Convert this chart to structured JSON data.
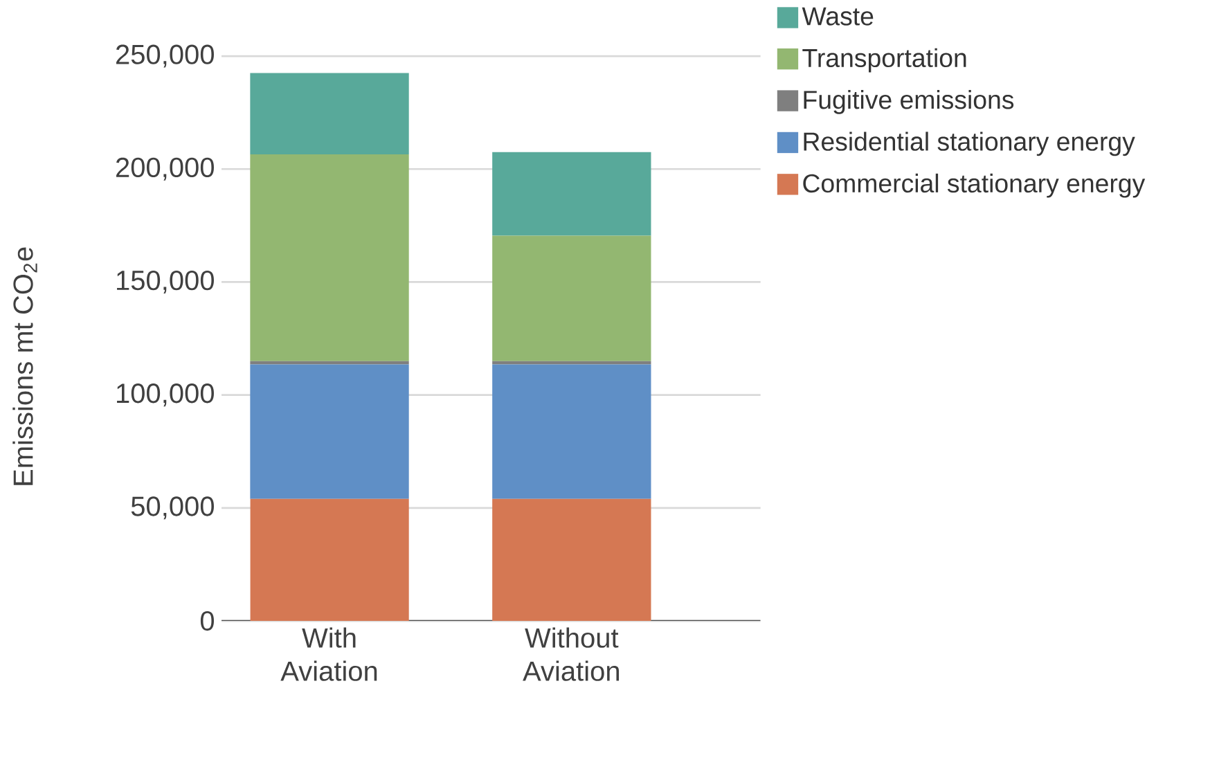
{
  "chart_data": {
    "type": "bar",
    "stacked": true,
    "ylabel": "Emissions  mt CO$_{2}$e",
    "categories": [
      "With Aviation",
      "Without Aviation"
    ],
    "series": [
      {
        "name": "Commercial stationary energy",
        "color": "#d57853",
        "values": [
          54000,
          54000
        ]
      },
      {
        "name": "Residential stationary energy",
        "color": "#5f8fc6",
        "values": [
          59500,
          59500
        ]
      },
      {
        "name": "Fugitive emissions",
        "color": "#7f7f7f",
        "values": [
          1500,
          1500
        ]
      },
      {
        "name": "Transportation",
        "color": "#93b771",
        "values": [
          91500,
          55500
        ]
      },
      {
        "name": "Waste",
        "color": "#58a99a",
        "values": [
          36000,
          37000
        ]
      }
    ],
    "ylim": [
      0,
      250000
    ],
    "yticks": [
      0,
      {
        "value": 50000,
        "label": "50,000"
      },
      {
        "value": 100000,
        "label": "100,000"
      },
      {
        "value": 150000,
        "label": "150,000"
      },
      {
        "value": 200000,
        "label": "200,000"
      },
      {
        "value": 250000,
        "label": "250,000"
      }
    ],
    "grid": "y",
    "legend": "right"
  }
}
